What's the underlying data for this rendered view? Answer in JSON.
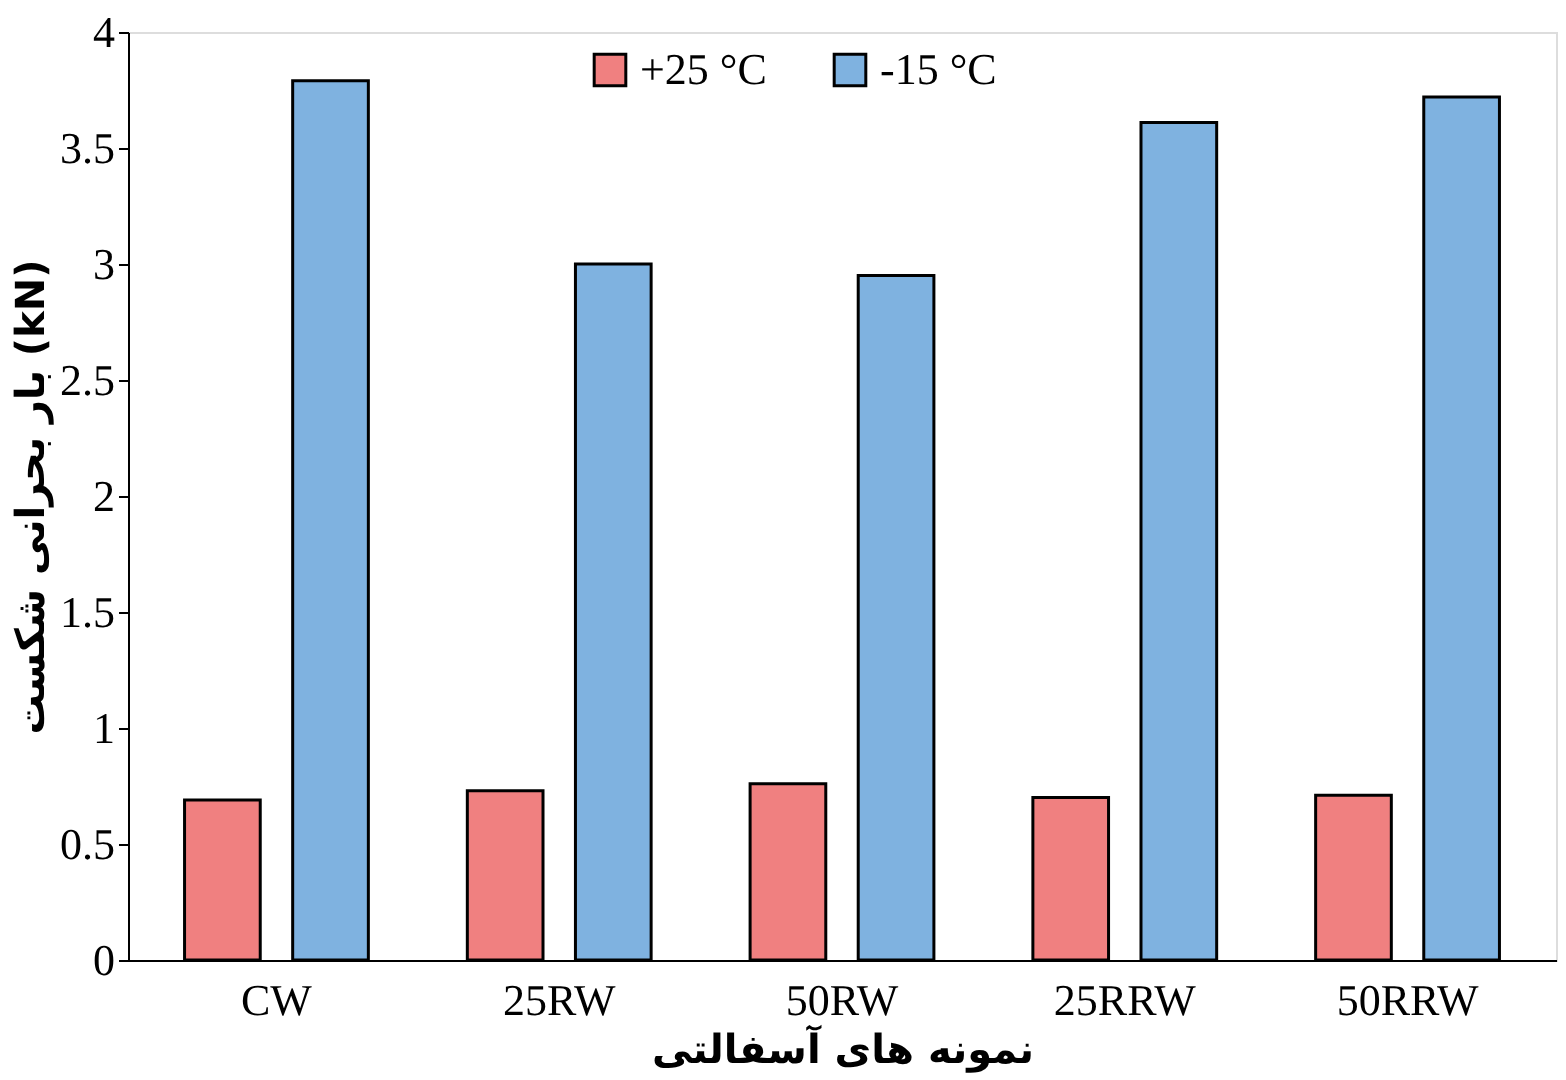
{
  "chart_data": {
    "type": "bar",
    "xlabel": "نمونه های آسفالتی",
    "ylabel": "بار بحرانی شکست (kN)",
    "categories": [
      "CW",
      "25RW",
      "50RW",
      "25RRW",
      "50RRW"
    ],
    "series": [
      {
        "name": "+25 °C",
        "color": "#f08080",
        "values": [
          0.69,
          0.73,
          0.76,
          0.7,
          0.71
        ]
      },
      {
        "name": "-15 °C",
        "color": "#7fb2e0",
        "values": [
          3.79,
          3.0,
          2.95,
          3.61,
          3.72
        ]
      }
    ],
    "ylim": [
      0,
      4
    ],
    "yticks": [
      0,
      0.5,
      1,
      1.5,
      2,
      2.5,
      3,
      3.5,
      4
    ],
    "grid": false,
    "legend": "top"
  }
}
